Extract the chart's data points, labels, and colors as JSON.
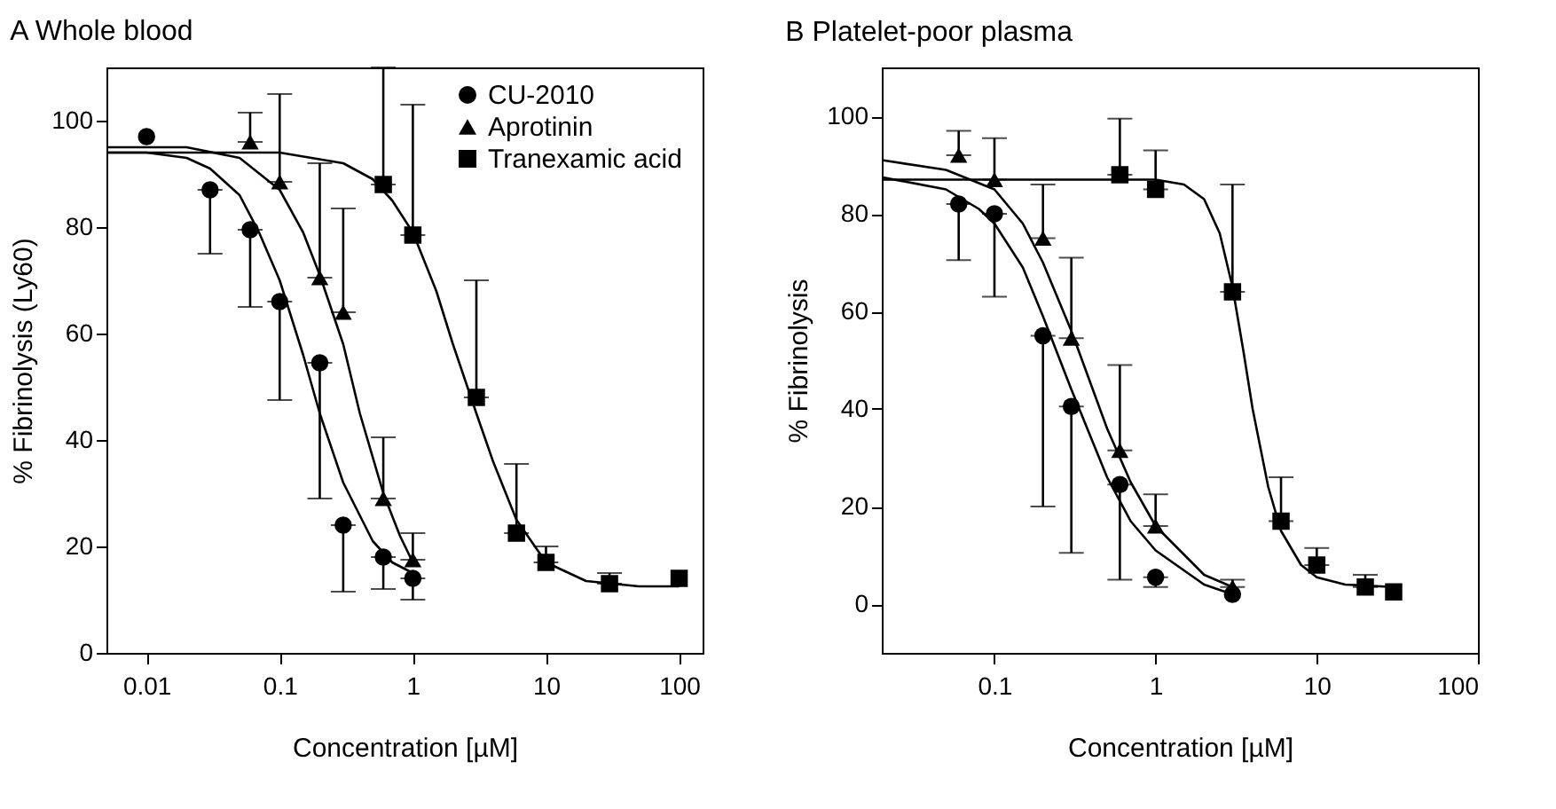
{
  "chart_data": [
    {
      "type": "scatter",
      "title": "A Whole blood",
      "xlabel": "Concentration [µM]",
      "ylabel": "% Fibrinolysis (Ly60)",
      "log": "x",
      "legend": "top right",
      "xlim": [
        0.005,
        150
      ],
      "xticks": [
        0.01,
        0.1,
        1,
        10,
        100
      ],
      "ylim": [
        0,
        110
      ],
      "yticks": [
        0,
        20,
        40,
        60,
        80,
        100
      ],
      "series": [
        {
          "type": "line",
          "color": "#000000",
          "x": [
            0.005,
            0.01,
            0.02,
            0.03,
            0.05,
            0.07,
            0.1,
            0.15,
            0.2,
            0.3,
            0.5,
            0.7,
            1
          ],
          "values": [
            94,
            94,
            93,
            91,
            86,
            79,
            70,
            56,
            45,
            32,
            21,
            17,
            15
          ]
        },
        {
          "type": "line",
          "color": "#000000",
          "x": [
            0.005,
            0.02,
            0.05,
            0.1,
            0.15,
            0.2,
            0.3,
            0.4,
            0.6,
            0.8,
            1
          ],
          "values": [
            95,
            95,
            93,
            87,
            79,
            71,
            58,
            45,
            30,
            22,
            17
          ]
        },
        {
          "type": "line",
          "color": "#000000",
          "x": [
            0.005,
            0.1,
            0.3,
            0.5,
            0.7,
            1,
            1.5,
            2,
            3,
            4,
            6,
            10,
            20,
            50,
            100
          ],
          "values": [
            94,
            94,
            92,
            89,
            85,
            79,
            68,
            58,
            45,
            36,
            25,
            17,
            13.5,
            12.5,
            12.5
          ]
        },
        {
          "type": "scatter",
          "name": "CU-2010",
          "color": "#000000",
          "marker": "circle",
          "x": [
            0.01,
            0.03,
            0.06,
            0.1,
            0.2,
            0.3,
            0.6,
            1
          ],
          "values": [
            97,
            87,
            79.5,
            66,
            54.5,
            24,
            18,
            14
          ],
          "errors": [
            null,
            [
              75,
              87
            ],
            [
              65,
              79.5
            ],
            [
              47.5,
              66
            ],
            [
              29,
              54.5
            ],
            [
              11.5,
              24
            ],
            [
              12,
              18
            ],
            [
              10,
              14
            ]
          ]
        },
        {
          "type": "scatter",
          "name": "Aprotinin",
          "color": "#000000",
          "marker": "triangle",
          "x": [
            0.06,
            0.1,
            0.2,
            0.3,
            0.6,
            1
          ],
          "values": [
            96,
            88.5,
            70.5,
            64,
            29,
            17.5
          ],
          "errors": [
            [
              96,
              101.5
            ],
            [
              88.5,
              105
            ],
            [
              70.5,
              92
            ],
            [
              64,
              83.5
            ],
            [
              29,
              40.5
            ],
            [
              17.5,
              22.5
            ]
          ]
        },
        {
          "type": "scatter",
          "name": "Tranexamic acid",
          "color": "#000000",
          "marker": "square",
          "x": [
            0.6,
            1,
            3,
            6,
            10,
            30,
            100
          ],
          "values": [
            88,
            78.5,
            48,
            22.5,
            17,
            13,
            14
          ],
          "errors": [
            [
              88,
              110
            ],
            [
              78.5,
              103
            ],
            [
              48,
              70
            ],
            [
              22.5,
              35.5
            ],
            [
              17,
              20
            ],
            [
              13,
              15
            ],
            null
          ]
        }
      ]
    },
    {
      "type": "scatter",
      "title": "B Platelet-poor plasma",
      "xlabel": "Concentration [µM]",
      "ylabel": "% Fibrinolysis",
      "log": "x",
      "legend": "top right",
      "xlim": [
        0.02,
        100
      ],
      "xticks": [
        0.1,
        1,
        10,
        100
      ],
      "ylim": [
        -10,
        110
      ],
      "yticks": [
        0,
        20,
        40,
        60,
        80,
        100
      ],
      "series": [
        {
          "type": "line",
          "color": "#000000",
          "x": [
            0.02,
            0.05,
            0.08,
            0.1,
            0.15,
            0.2,
            0.3,
            0.5,
            0.7,
            1,
            2,
            3
          ],
          "values": [
            87.5,
            85,
            81,
            78,
            69,
            59,
            44,
            26,
            17,
            11,
            4,
            2
          ]
        },
        {
          "type": "line",
          "color": "#000000",
          "x": [
            0.02,
            0.05,
            0.1,
            0.15,
            0.2,
            0.3,
            0.5,
            0.7,
            1,
            2,
            3
          ],
          "values": [
            91,
            89,
            85,
            78,
            70,
            56,
            36,
            25,
            16,
            6,
            3.5
          ]
        },
        {
          "type": "line",
          "color": "#000000",
          "x": [
            0.02,
            1,
            1.5,
            2,
            2.5,
            3,
            3.5,
            4,
            5,
            6,
            8,
            10,
            15,
            30
          ],
          "values": [
            87,
            87,
            86,
            83,
            76,
            65,
            52,
            40,
            24,
            15,
            8,
            5.5,
            4,
            3.5
          ]
        },
        {
          "type": "scatter",
          "name": "CU-2010",
          "color": "#000000",
          "marker": "circle",
          "x": [
            0.06,
            0.1,
            0.2,
            0.3,
            0.6,
            1,
            3
          ],
          "values": [
            82,
            80,
            55,
            40.5,
            24.5,
            5.5,
            2
          ],
          "errors": [
            [
              70.5,
              82
            ],
            [
              63,
              80
            ],
            [
              20,
              55
            ],
            [
              10.5,
              40.5
            ],
            [
              5,
              24.5
            ],
            [
              3.5,
              5.5
            ],
            null
          ]
        },
        {
          "type": "scatter",
          "name": "Aprotinin",
          "color": "#000000",
          "marker": "triangle",
          "x": [
            0.06,
            0.1,
            0.2,
            0.3,
            0.6,
            1,
            3
          ],
          "values": [
            92,
            87,
            75,
            54.5,
            31.5,
            16,
            3.5
          ],
          "errors": [
            [
              92,
              97
            ],
            [
              87,
              95.5
            ],
            [
              75,
              86
            ],
            [
              54.5,
              71
            ],
            [
              31.5,
              49
            ],
            [
              16,
              22.5
            ],
            [
              3.5,
              5
            ]
          ]
        },
        {
          "type": "scatter",
          "name": "Tranexamic acid",
          "color": "#000000",
          "marker": "square",
          "x": [
            0.6,
            1,
            3,
            6,
            10,
            20,
            30
          ],
          "values": [
            88,
            85,
            64,
            17,
            8,
            3.5,
            2.5
          ],
          "errors": [
            [
              88,
              99.5
            ],
            [
              85,
              93
            ],
            [
              64,
              86
            ],
            [
              17,
              26
            ],
            [
              8,
              11.5
            ],
            [
              3.5,
              6
            ],
            null
          ]
        }
      ]
    }
  ]
}
